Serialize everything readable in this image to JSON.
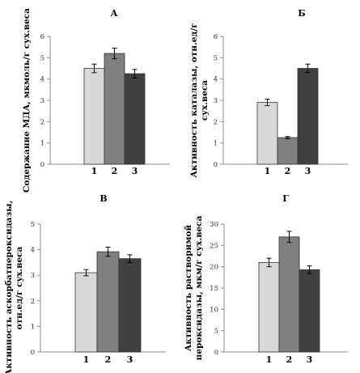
{
  "chart_data": [
    {
      "type": "bar",
      "title": "А",
      "ylabel": [
        "Содержание МДА, мкмоль/г сух.веса"
      ],
      "categories": [
        "1",
        "2",
        "3"
      ],
      "values": [
        4.5,
        5.2,
        4.25
      ],
      "errors": [
        0.2,
        0.25,
        0.2
      ],
      "ylim": [
        0,
        6
      ],
      "yticks": [
        0,
        1,
        2,
        3,
        4,
        5,
        6
      ],
      "colors": [
        "#d9d9d9",
        "#808080",
        "#404040"
      ],
      "grid": false,
      "legend": "none"
    },
    {
      "type": "bar",
      "title": "Б",
      "ylabel": [
        "Активность каталазы, отн.ед/г",
        "сух.веса"
      ],
      "categories": [
        "1",
        "2",
        "3"
      ],
      "values": [
        2.9,
        1.25,
        4.5
      ],
      "errors": [
        0.15,
        0.05,
        0.2
      ],
      "ylim": [
        0,
        6
      ],
      "yticks": [
        0,
        1,
        2,
        3,
        4,
        5,
        6
      ],
      "colors": [
        "#d9d9d9",
        "#808080",
        "#404040"
      ],
      "grid": false,
      "legend": "none"
    },
    {
      "type": "bar",
      "title": "В",
      "ylabel": [
        "Активность аскорбатпероксидазы,",
        "отн.ед/г сух.веса"
      ],
      "categories": [
        "1",
        "2",
        "3"
      ],
      "values": [
        3.1,
        3.92,
        3.65
      ],
      "errors": [
        0.12,
        0.18,
        0.15
      ],
      "ylim": [
        0,
        5
      ],
      "yticks": [
        0,
        1,
        2,
        3,
        4,
        5
      ],
      "colors": [
        "#d9d9d9",
        "#808080",
        "#404040"
      ],
      "grid": false,
      "legend": "none"
    },
    {
      "type": "bar",
      "title": "Г",
      "ylabel": [
        "Активность растворимой",
        "пероксидазы, мкм/г сух.веса"
      ],
      "categories": [
        "1",
        "2",
        "3"
      ],
      "values": [
        21,
        27,
        19.3
      ],
      "errors": [
        1.0,
        1.3,
        0.9
      ],
      "ylim": [
        0,
        30
      ],
      "yticks": [
        0,
        5,
        10,
        15,
        20,
        25,
        30
      ],
      "colors": [
        "#d9d9d9",
        "#808080",
        "#404040"
      ],
      "grid": false,
      "legend": "none"
    }
  ]
}
